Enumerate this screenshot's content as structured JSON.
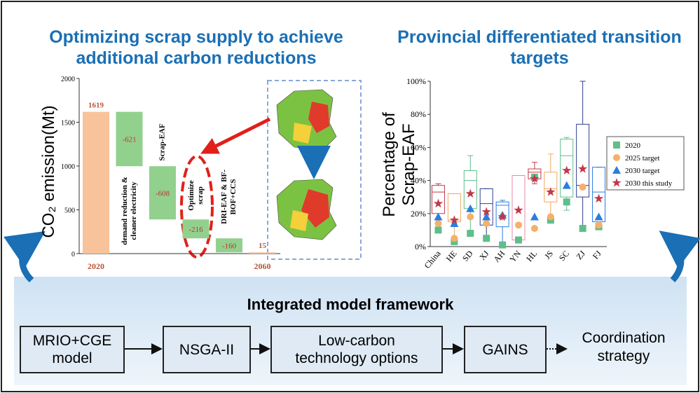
{
  "left_title": "Optimizing scrap supply to achieve additional carbon reductions",
  "right_title": "Provincial differentiated transition targets",
  "waterfall": {
    "type": "waterfall",
    "ylabel": "CO₂ emission(Mt)",
    "categories": [
      "2020",
      "demand reduction & cleaner electricity",
      "Scrap-EAF",
      "Optimize scrap",
      "DRI-EAF & BF-BOF+CCS",
      "2060"
    ],
    "values": [
      1619,
      -621,
      -608,
      -216,
      -160,
      15
    ],
    "totals": [
      true,
      false,
      false,
      false,
      false,
      true
    ],
    "colors": [
      "#f8c39b",
      "#92d08e",
      "#92d08e",
      "#92d08e",
      "#92d08e",
      "#f8c39b"
    ],
    "ylim": [
      0,
      2000
    ],
    "yticks": [
      0,
      500,
      1000,
      1500,
      2000
    ]
  },
  "boxes": {
    "type": "box",
    "ylabel": [
      "Percentage of",
      "Scrap-EAF"
    ],
    "categories": [
      "China",
      "HE",
      "SD",
      "XJ",
      "AH",
      "YN",
      "HL",
      "JS",
      "SC",
      "ZJ",
      "FJ"
    ],
    "box_colors": [
      "#c0394a",
      "#f0a860",
      "#5dbf8a",
      "#2e3f8f",
      "#2a7de1",
      "#e88aa8",
      "#c0394a",
      "#f0a860",
      "#5dbf8a",
      "#2e3f8f",
      "#2a7de1"
    ],
    "min": [
      10,
      3,
      8,
      5,
      1,
      4,
      38,
      16,
      22,
      10,
      12
    ],
    "q1": [
      20,
      15,
      23,
      13,
      12,
      4,
      41,
      27,
      30,
      30,
      15
    ],
    "median": [
      33,
      16,
      40,
      26,
      25,
      43,
      45,
      35,
      55,
      37,
      33
    ],
    "q3": [
      37,
      32,
      46,
      35,
      27,
      43,
      47,
      45,
      65,
      74,
      48
    ],
    "max": [
      38,
      32,
      55,
      35,
      28,
      43,
      51,
      56,
      66,
      100,
      48
    ],
    "series": [
      {
        "name": "2020",
        "color": "#5dbf8a",
        "marker": "square",
        "values": [
          10,
          3,
          8,
          5,
          1,
          4,
          42,
          16,
          27,
          11,
          12
        ]
      },
      {
        "name": "2025 target",
        "color": "#f5b06b",
        "marker": "circle",
        "values": [
          14,
          5,
          18,
          14,
          18,
          13,
          11,
          18,
          null,
          36,
          13
        ]
      },
      {
        "name": "2030 target",
        "color": "#2a7de1",
        "marker": "triangle",
        "values": [
          18,
          14,
          23,
          18,
          19,
          null,
          18,
          null,
          37,
          null,
          18
        ]
      },
      {
        "name": "2030 this study",
        "color": "#c0394a",
        "marker": "star",
        "values": [
          26,
          16,
          32,
          21,
          18,
          22,
          41,
          33,
          46,
          47,
          29
        ]
      }
    ],
    "ylim": [
      0,
      100
    ],
    "yticks": [
      {
        "value": 0,
        "label": "0%"
      },
      {
        "value": 20,
        "label": "20%"
      },
      {
        "value": 40,
        "label": "40%"
      },
      {
        "value": 60,
        "label": "60%"
      },
      {
        "value": 80,
        "label": "80%"
      },
      {
        "value": 100,
        "label": "100%"
      }
    ]
  },
  "framework": {
    "title": "Integrated model framework",
    "nodes": [
      "MRIO+CGE model",
      "NSGA-II",
      "Low-carbon technology options",
      "GAINS",
      "Coordination strategy"
    ]
  }
}
